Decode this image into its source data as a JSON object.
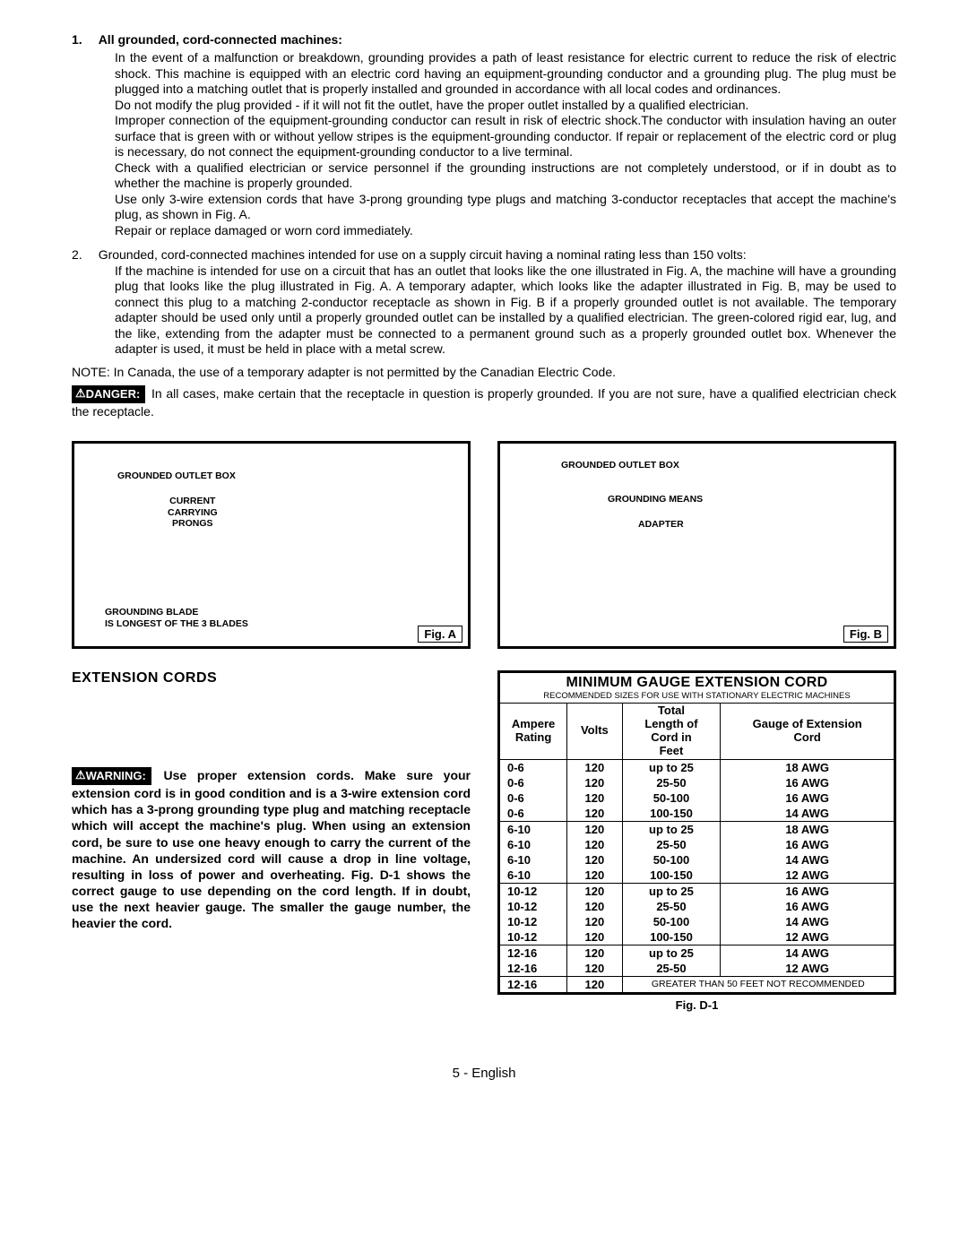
{
  "section1": {
    "num": "1.",
    "heading": "All grounded, cord-connected machines:",
    "p1": "In the event of a malfunction or breakdown, grounding provides a path of least resistance for electric current to reduce the risk of electric shock. This machine is equipped with an electric cord having an equipment-grounding conductor and a grounding plug. The plug must be plugged into a matching outlet that is properly installed and grounded in accordance with all local codes and ordinances.",
    "p2": "Do not modify the plug provided - if it will not fit the outlet, have the proper outlet installed by a qualified electrician.",
    "p3": "Improper connection of the equipment-grounding conductor can result in risk of electric shock.The conductor with insulation having an outer surface that is green with or without yellow stripes is the equipment-grounding conductor. If repair or replacement of the electric cord or plug is necessary, do not connect the equipment-grounding conductor to a live terminal.",
    "p4": "Check with a qualified electrician or service personnel if the grounding instructions are not completely understood, or if in doubt as to whether the machine is properly grounded.",
    "p5": "Use only 3-wire extension cords that have 3-prong grounding type plugs and matching 3-conductor receptacles that accept the machine's plug, as shown in Fig. A.",
    "p6": "Repair or replace damaged or worn cord immediately."
  },
  "section2": {
    "num": "2.",
    "lead": "Grounded, cord-connected machines intended for use on a supply circuit having a nominal rating less than 150 volts:",
    "body": "If the machine is intended for use on a circuit that has an outlet that looks like the one illustrated in Fig. A, the machine will have a grounding plug that looks like the plug illustrated in Fig. A. A temporary adapter, which looks like the adapter illustrated in Fig. B, may be used to connect this plug to a matching 2-conductor receptacle as shown in Fig. B if a properly grounded outlet is not available. The temporary adapter should be used only until a properly grounded outlet can be installed by a qualified electrician. The green-colored rigid ear, lug, and the like, extending from the adapter must be connected to a permanent ground such as a properly grounded outlet box. Whenever the adapter is used, it must be held in place with a metal screw."
  },
  "note": "NOTE: In Canada, the use of a temporary adapter is not permitted by the Canadian Electric Code.",
  "danger": {
    "label": "DANGER:",
    "text": "In all cases, make certain that the receptacle in question is properly grounded. If you are not sure, have a qualified electrician check the receptacle."
  },
  "figA": {
    "label": "Fig. A",
    "t1": "GROUNDED OUTLET BOX",
    "t2": "CURRENT\nCARRYING\nPRONGS",
    "t3": "GROUNDING BLADE\nIS LONGEST OF THE 3 BLADES"
  },
  "figB": {
    "label": "Fig. B",
    "t1": "GROUNDED OUTLET BOX",
    "t2": "GROUNDING MEANS",
    "t3": "ADAPTER"
  },
  "ext": {
    "heading": "EXTENSION CORDS",
    "warn_label": "WARNING:",
    "warn_text": "Use proper extension cords. Make sure your extension cord is in good condition and is a 3-wire extension cord which has a 3-prong grounding type plug and matching receptacle which will accept the machine's plug. When using an extension cord, be sure to use one heavy enough to carry the current of the machine. An undersized cord will cause a drop in line voltage, resulting in loss of power and overheating. Fig. D-1 shows the correct gauge to use depending on the cord length. If in doubt, use the next heavier gauge. The smaller the gauge number, the heavier the cord."
  },
  "table": {
    "title": "MINIMUM GAUGE EXTENSION CORD",
    "subtitle": "RECOMMENDED SIZES FOR USE WITH STATIONARY ELECTRIC MACHINES",
    "headers": [
      "Ampere\nRating",
      "Volts",
      "Total\nLength of\nCord in\nFeet",
      "Gauge of Extension\nCord"
    ],
    "rows": [
      [
        "0-6",
        "120",
        "up to 25",
        "18 AWG"
      ],
      [
        "0-6",
        "120",
        "25-50",
        "16 AWG"
      ],
      [
        "0-6",
        "120",
        "50-100",
        "16 AWG"
      ],
      [
        "0-6",
        "120",
        "100-150",
        "14 AWG"
      ],
      [
        "6-10",
        "120",
        "up to 25",
        "18 AWG"
      ],
      [
        "6-10",
        "120",
        "25-50",
        "16 AWG"
      ],
      [
        "6-10",
        "120",
        "50-100",
        "14 AWG"
      ],
      [
        "6-10",
        "120",
        "100-150",
        "12 AWG"
      ],
      [
        "10-12",
        "120",
        "up to 25",
        "16 AWG"
      ],
      [
        "10-12",
        "120",
        "25-50",
        "16 AWG"
      ],
      [
        "10-12",
        "120",
        "50-100",
        "14 AWG"
      ],
      [
        "10-12",
        "120",
        "100-150",
        "12 AWG"
      ],
      [
        "12-16",
        "120",
        "up to 25",
        "14 AWG"
      ],
      [
        "12-16",
        "120",
        "25-50",
        "12 AWG"
      ]
    ],
    "last_row": [
      "12-16",
      "120",
      "GREATER THAN 50 FEET NOT RECOMMENDED"
    ],
    "fig_label": "Fig. D-1",
    "col_widths": [
      "17%",
      "14%",
      "25%",
      "44%"
    ],
    "sep_indices": [
      4,
      8,
      12
    ]
  },
  "footer": "5 - English",
  "colors": {
    "text": "#000000",
    "bg": "#ffffff"
  }
}
